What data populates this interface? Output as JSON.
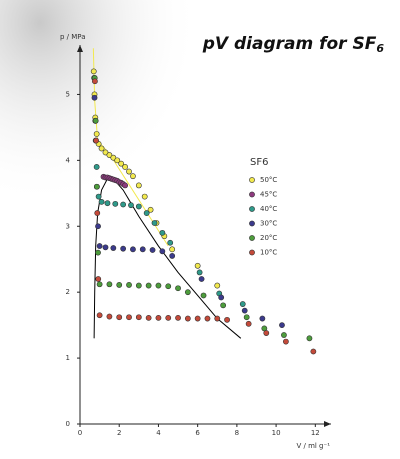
{
  "chart_data": {
    "type": "scatter",
    "title": {
      "text": "pV diagram for SF",
      "subscript": "6"
    },
    "xlabel": "V / ml g⁻¹",
    "ylabel": "p / MPa",
    "xlim": [
      0,
      12.8
    ],
    "ylim": [
      0,
      5.75
    ],
    "xticks": [
      0,
      2,
      4,
      6,
      8,
      10,
      12
    ],
    "yticks": [
      0,
      1,
      2,
      3,
      4,
      5
    ],
    "legend_title": "SF6",
    "legend": "right",
    "series": [
      {
        "name": "50°C",
        "color": "#f2e94e",
        "x": [
          0.7,
          0.74,
          0.78,
          0.85,
          0.95,
          1.1,
          1.3,
          1.5,
          1.7,
          1.9,
          2.1,
          2.3,
          2.5,
          2.7,
          3.0,
          3.3,
          3.6,
          3.9,
          4.3,
          4.7,
          6.0,
          7.0
        ],
        "values": [
          5.35,
          5.0,
          4.65,
          4.4,
          4.25,
          4.18,
          4.12,
          4.08,
          4.04,
          4.0,
          3.95,
          3.9,
          3.83,
          3.76,
          3.62,
          3.45,
          3.25,
          3.05,
          2.85,
          2.65,
          2.4,
          2.1
        ]
      },
      {
        "name": "45°C",
        "color": "#8e3a7e",
        "x": [
          1.2,
          1.3,
          1.4,
          1.5,
          1.6,
          1.7,
          1.8,
          1.9,
          2.0,
          2.1,
          2.2,
          2.3
        ],
        "values": [
          3.75,
          3.74,
          3.74,
          3.73,
          3.72,
          3.71,
          3.7,
          3.69,
          3.67,
          3.66,
          3.64,
          3.62
        ]
      },
      {
        "name": "40°C",
        "color": "#2f9a8a",
        "x": [
          0.72,
          0.78,
          0.85,
          0.95,
          1.1,
          1.4,
          1.8,
          2.2,
          2.6,
          3.0,
          3.4,
          3.8,
          4.2,
          4.6,
          6.1,
          7.1,
          8.3
        ],
        "values": [
          5.25,
          4.6,
          3.9,
          3.45,
          3.37,
          3.35,
          3.34,
          3.33,
          3.32,
          3.3,
          3.2,
          3.05,
          2.9,
          2.75,
          2.3,
          1.98,
          1.82
        ]
      },
      {
        "name": "30°C",
        "color": "#3b3a8c",
        "x": [
          0.74,
          0.8,
          0.86,
          0.92,
          1.0,
          1.3,
          1.7,
          2.2,
          2.7,
          3.2,
          3.7,
          4.2,
          4.7,
          6.2,
          7.2,
          8.4,
          9.3,
          10.3
        ],
        "values": [
          4.95,
          4.3,
          3.6,
          3.0,
          2.7,
          2.68,
          2.67,
          2.66,
          2.65,
          2.65,
          2.64,
          2.62,
          2.55,
          2.2,
          1.92,
          1.72,
          1.6,
          1.5
        ]
      },
      {
        "name": "20°C",
        "color": "#4d9c3c",
        "x": [
          0.75,
          0.8,
          0.86,
          0.92,
          1.0,
          1.5,
          2.0,
          2.5,
          3.0,
          3.5,
          4.0,
          4.5,
          5.0,
          5.5,
          6.3,
          7.3,
          8.5,
          9.4,
          10.4,
          11.7
        ],
        "values": [
          5.25,
          4.6,
          3.6,
          2.6,
          2.12,
          2.12,
          2.11,
          2.11,
          2.1,
          2.1,
          2.1,
          2.09,
          2.06,
          2.0,
          1.95,
          1.8,
          1.62,
          1.45,
          1.35,
          1.3
        ]
      },
      {
        "name": "10°C",
        "color": "#c44a3a",
        "x": [
          0.76,
          0.82,
          0.88,
          0.93,
          1.0,
          1.5,
          2.0,
          2.5,
          3.0,
          3.5,
          4.0,
          4.5,
          5.0,
          5.5,
          6.0,
          6.5,
          7.0,
          7.5,
          8.6,
          9.5,
          10.5,
          11.9
        ],
        "values": [
          5.2,
          4.3,
          3.2,
          2.2,
          1.65,
          1.63,
          1.62,
          1.62,
          1.62,
          1.61,
          1.61,
          1.61,
          1.61,
          1.6,
          1.6,
          1.6,
          1.6,
          1.58,
          1.52,
          1.38,
          1.25,
          1.1
        ]
      }
    ],
    "lines": [
      {
        "color": "#000000",
        "x": [
          0.72,
          0.75,
          0.8,
          0.9,
          1.1,
          1.4,
          1.7,
          2.2,
          3.0,
          4.0,
          5.0,
          6.0,
          7.0,
          8.2
        ],
        "values": [
          1.3,
          2.0,
          2.7,
          3.2,
          3.55,
          3.72,
          3.72,
          3.55,
          3.15,
          2.7,
          2.3,
          1.95,
          1.6,
          1.3
        ]
      },
      {
        "color": "#f2e94e",
        "x": [
          0.68,
          0.75,
          0.9,
          1.5,
          4.5
        ],
        "values": [
          5.7,
          4.9,
          4.3,
          4.1,
          2.7
        ]
      }
    ]
  }
}
